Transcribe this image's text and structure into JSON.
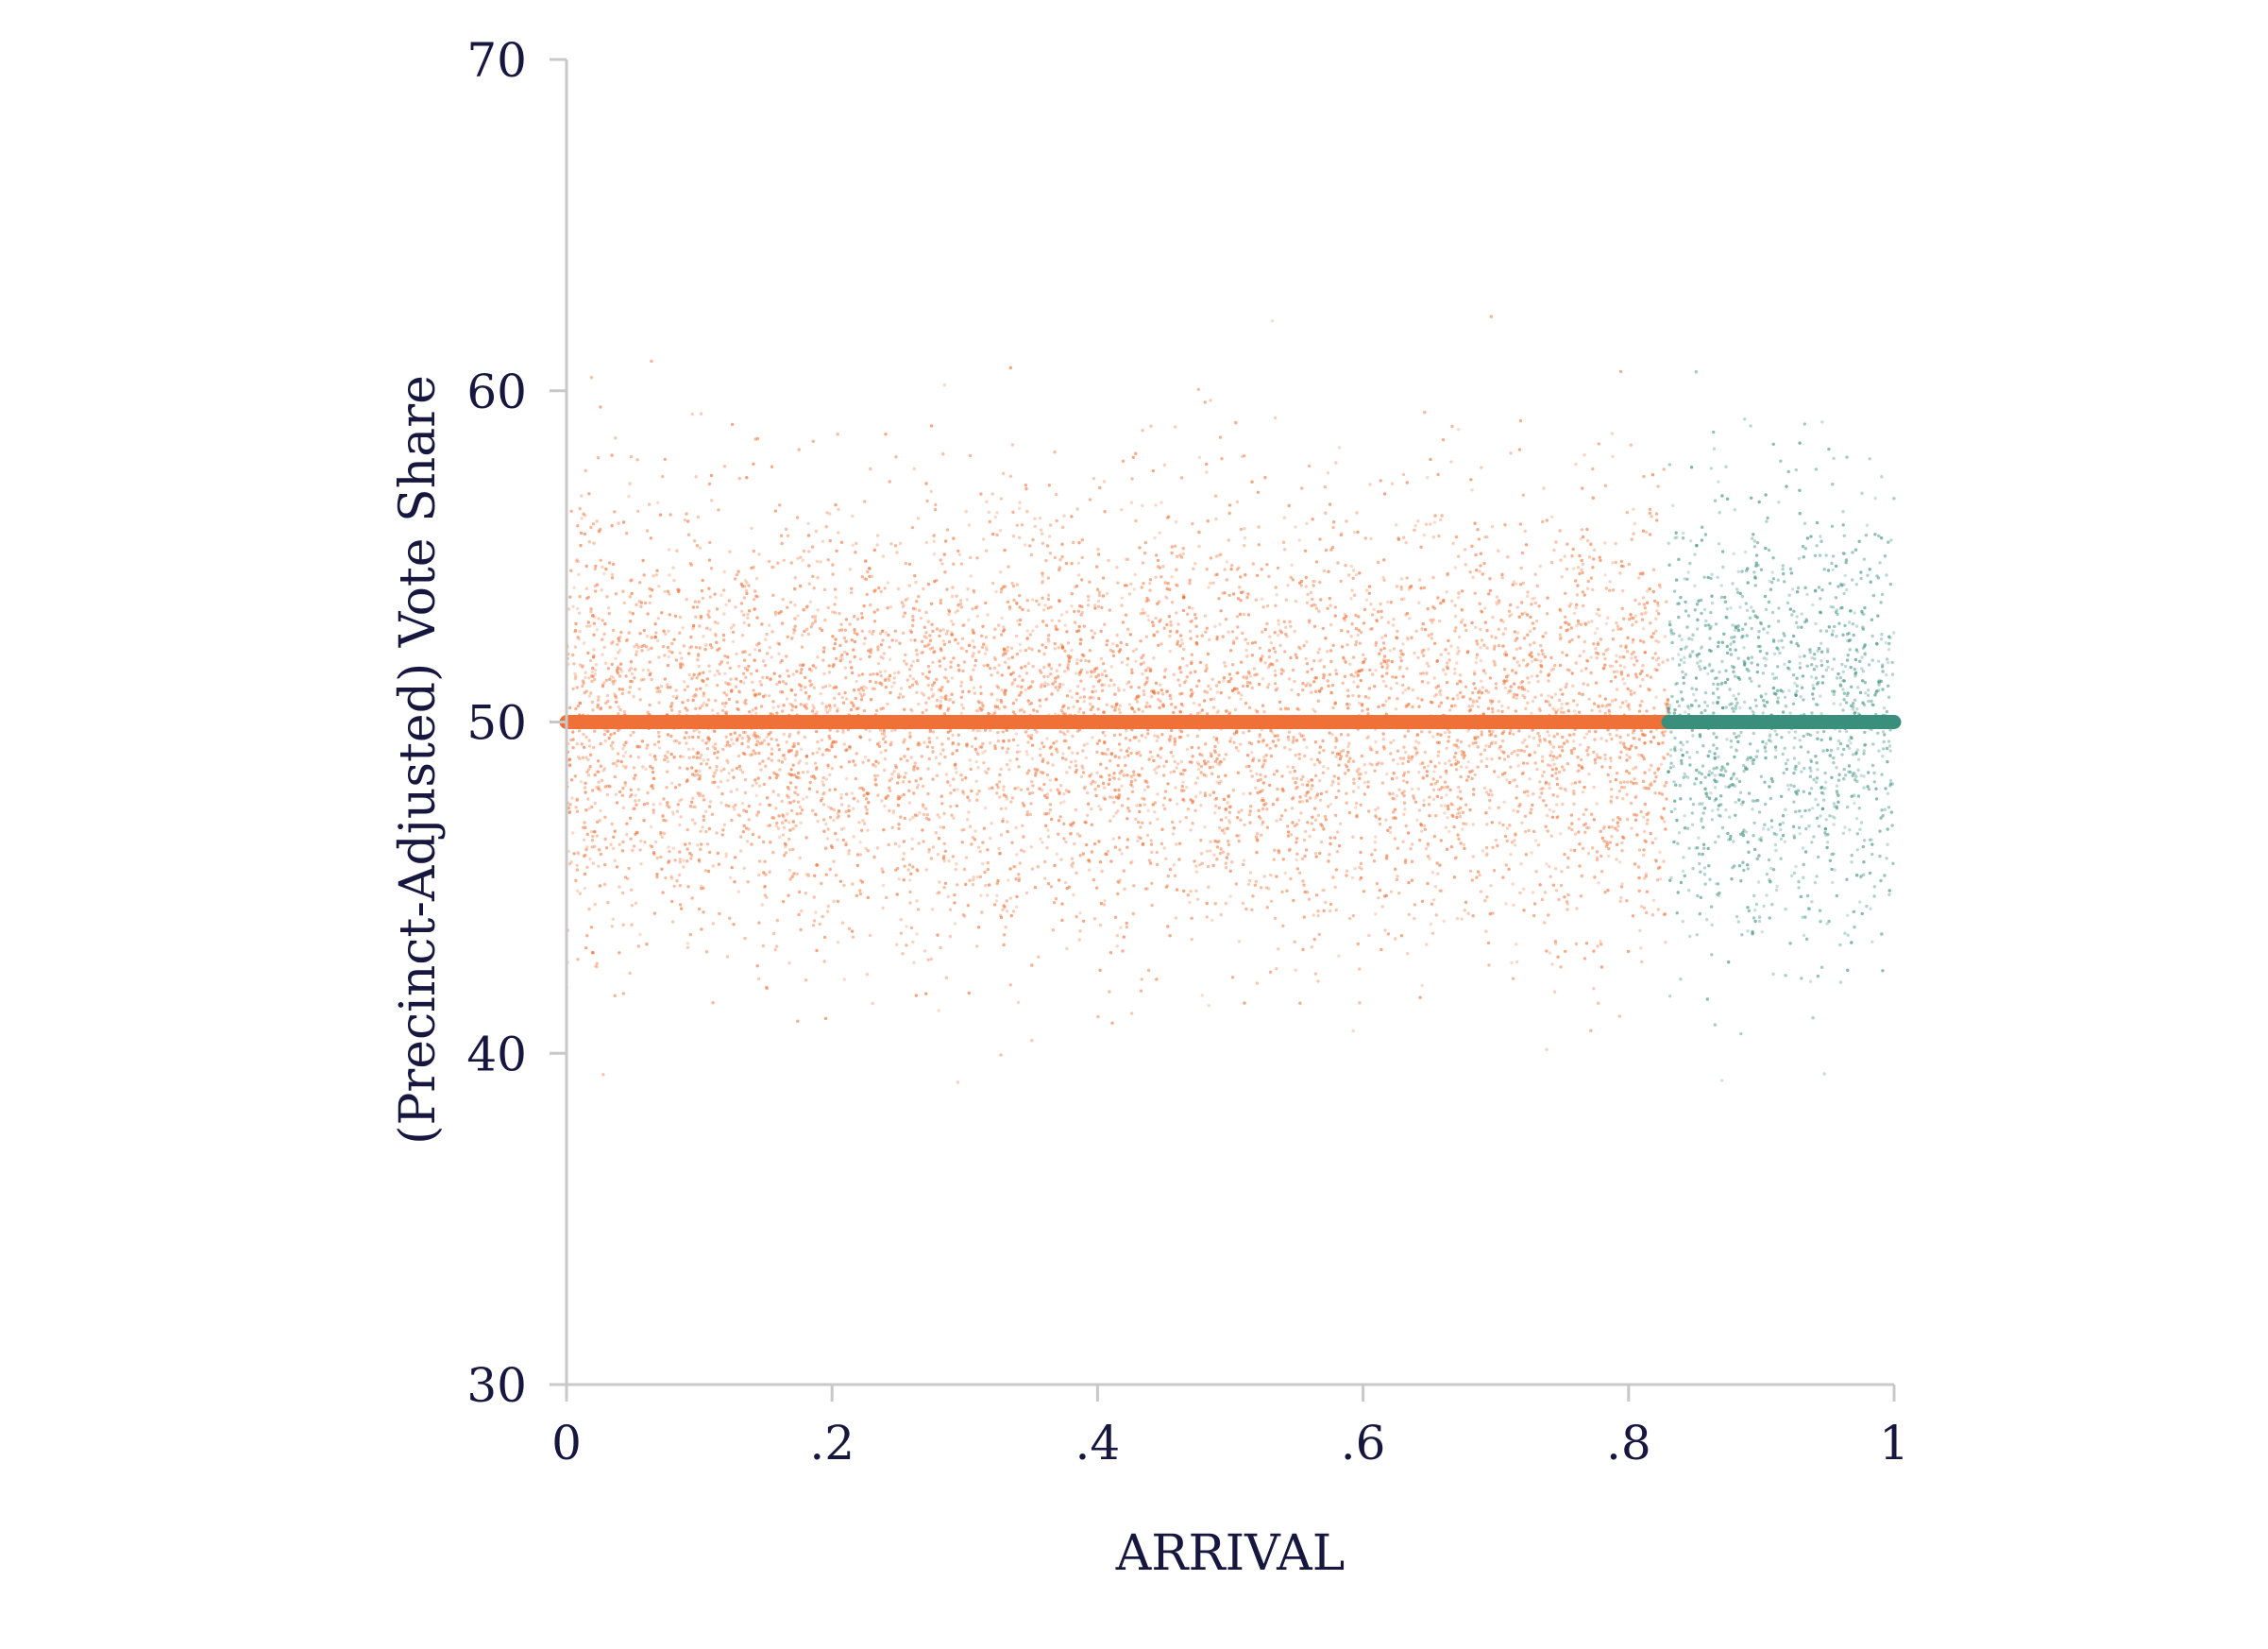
{
  "chart_data": {
    "type": "scatter",
    "title": "",
    "xlabel": "ARRIVAL",
    "ylabel": "(Precinct-Adjusted) Vote Share",
    "xlim": [
      0,
      1
    ],
    "ylim": [
      30,
      70
    ],
    "x_ticks": [
      {
        "value": 0,
        "label": "0"
      },
      {
        "value": 0.2,
        "label": ".2"
      },
      {
        "value": 0.4,
        "label": ".4"
      },
      {
        "value": 0.6,
        "label": ".6"
      },
      {
        "value": 0.8,
        "label": ".8"
      },
      {
        "value": 1,
        "label": "1"
      }
    ],
    "y_ticks": [
      {
        "value": 30,
        "label": "30"
      },
      {
        "value": 40,
        "label": "40"
      },
      {
        "value": 50,
        "label": "50"
      },
      {
        "value": 60,
        "label": "60"
      },
      {
        "value": 70,
        "label": "70"
      }
    ],
    "grid": false,
    "legend": "none",
    "series": [
      {
        "color": "#f07138",
        "x_range": [
          0,
          0.83
        ],
        "scatter_center": 50,
        "scatter_spread": 3.2,
        "scatter_extent": [
          36,
          63
        ],
        "fit_line": {
          "x": [
            0,
            0.83
          ],
          "y": [
            50,
            50
          ]
        }
      },
      {
        "color": "#3a8f7c",
        "x_range": [
          0.83,
          1
        ],
        "scatter_center": 50,
        "scatter_spread": 3.2,
        "scatter_extent": [
          39,
          65
        ],
        "fit_line": {
          "x": [
            0.83,
            1
          ],
          "y": [
            50,
            50
          ]
        }
      }
    ]
  }
}
